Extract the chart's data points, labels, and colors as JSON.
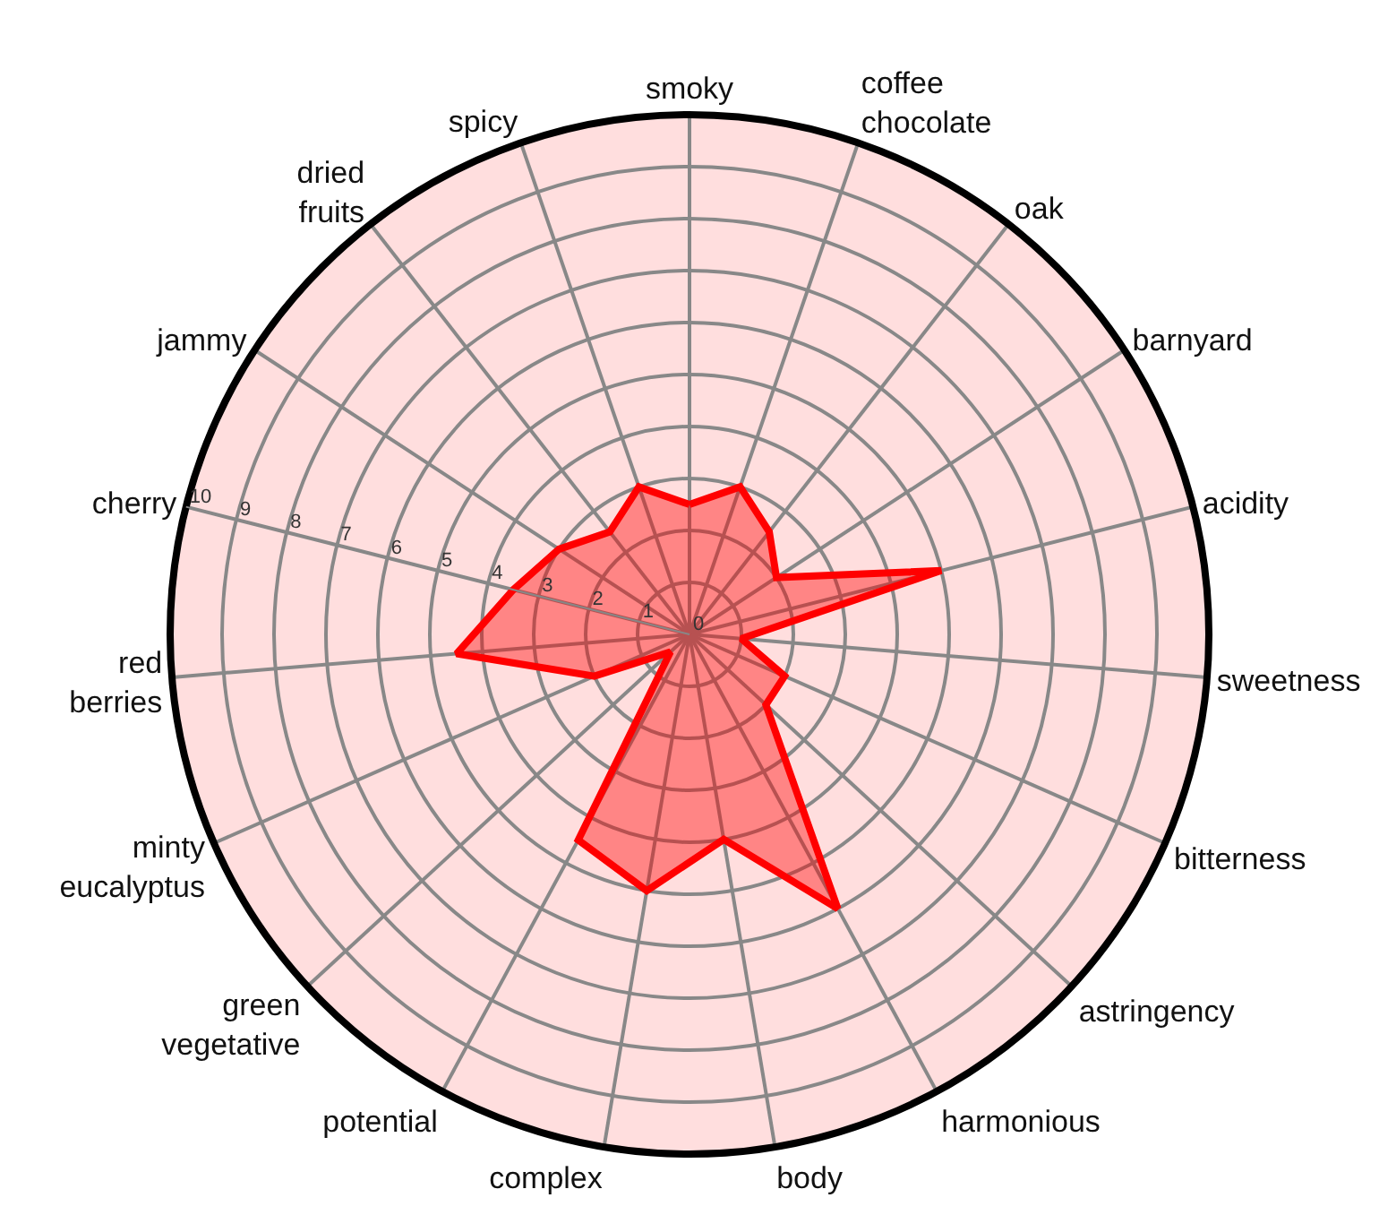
{
  "chart_data": {
    "type": "radar",
    "categories": [
      "smoky",
      "coffee chocolate",
      "oak",
      "barnyard",
      "acidity",
      "sweetness",
      "bitterness",
      "astringency",
      "harmonious",
      "body",
      "complex",
      "potential",
      "green vegetative",
      "minty eucalyptus",
      "red berries",
      "cherry",
      "jammy",
      "dried fruits",
      "spicy"
    ],
    "series": [
      {
        "color": "#ff0000",
        "values": [
          2.5,
          3,
          2.5,
          2,
          5,
          1,
          2,
          2,
          6,
          4,
          5,
          4.5,
          0.5,
          2,
          4.5,
          3.5,
          3,
          2.5,
          3
        ]
      }
    ],
    "ylim": [
      0,
      10
    ],
    "yticks": [
      0,
      1,
      2,
      3,
      4,
      5,
      6,
      7,
      8,
      9,
      10
    ],
    "grid": true,
    "marker": "none",
    "line_style": "solid"
  }
}
